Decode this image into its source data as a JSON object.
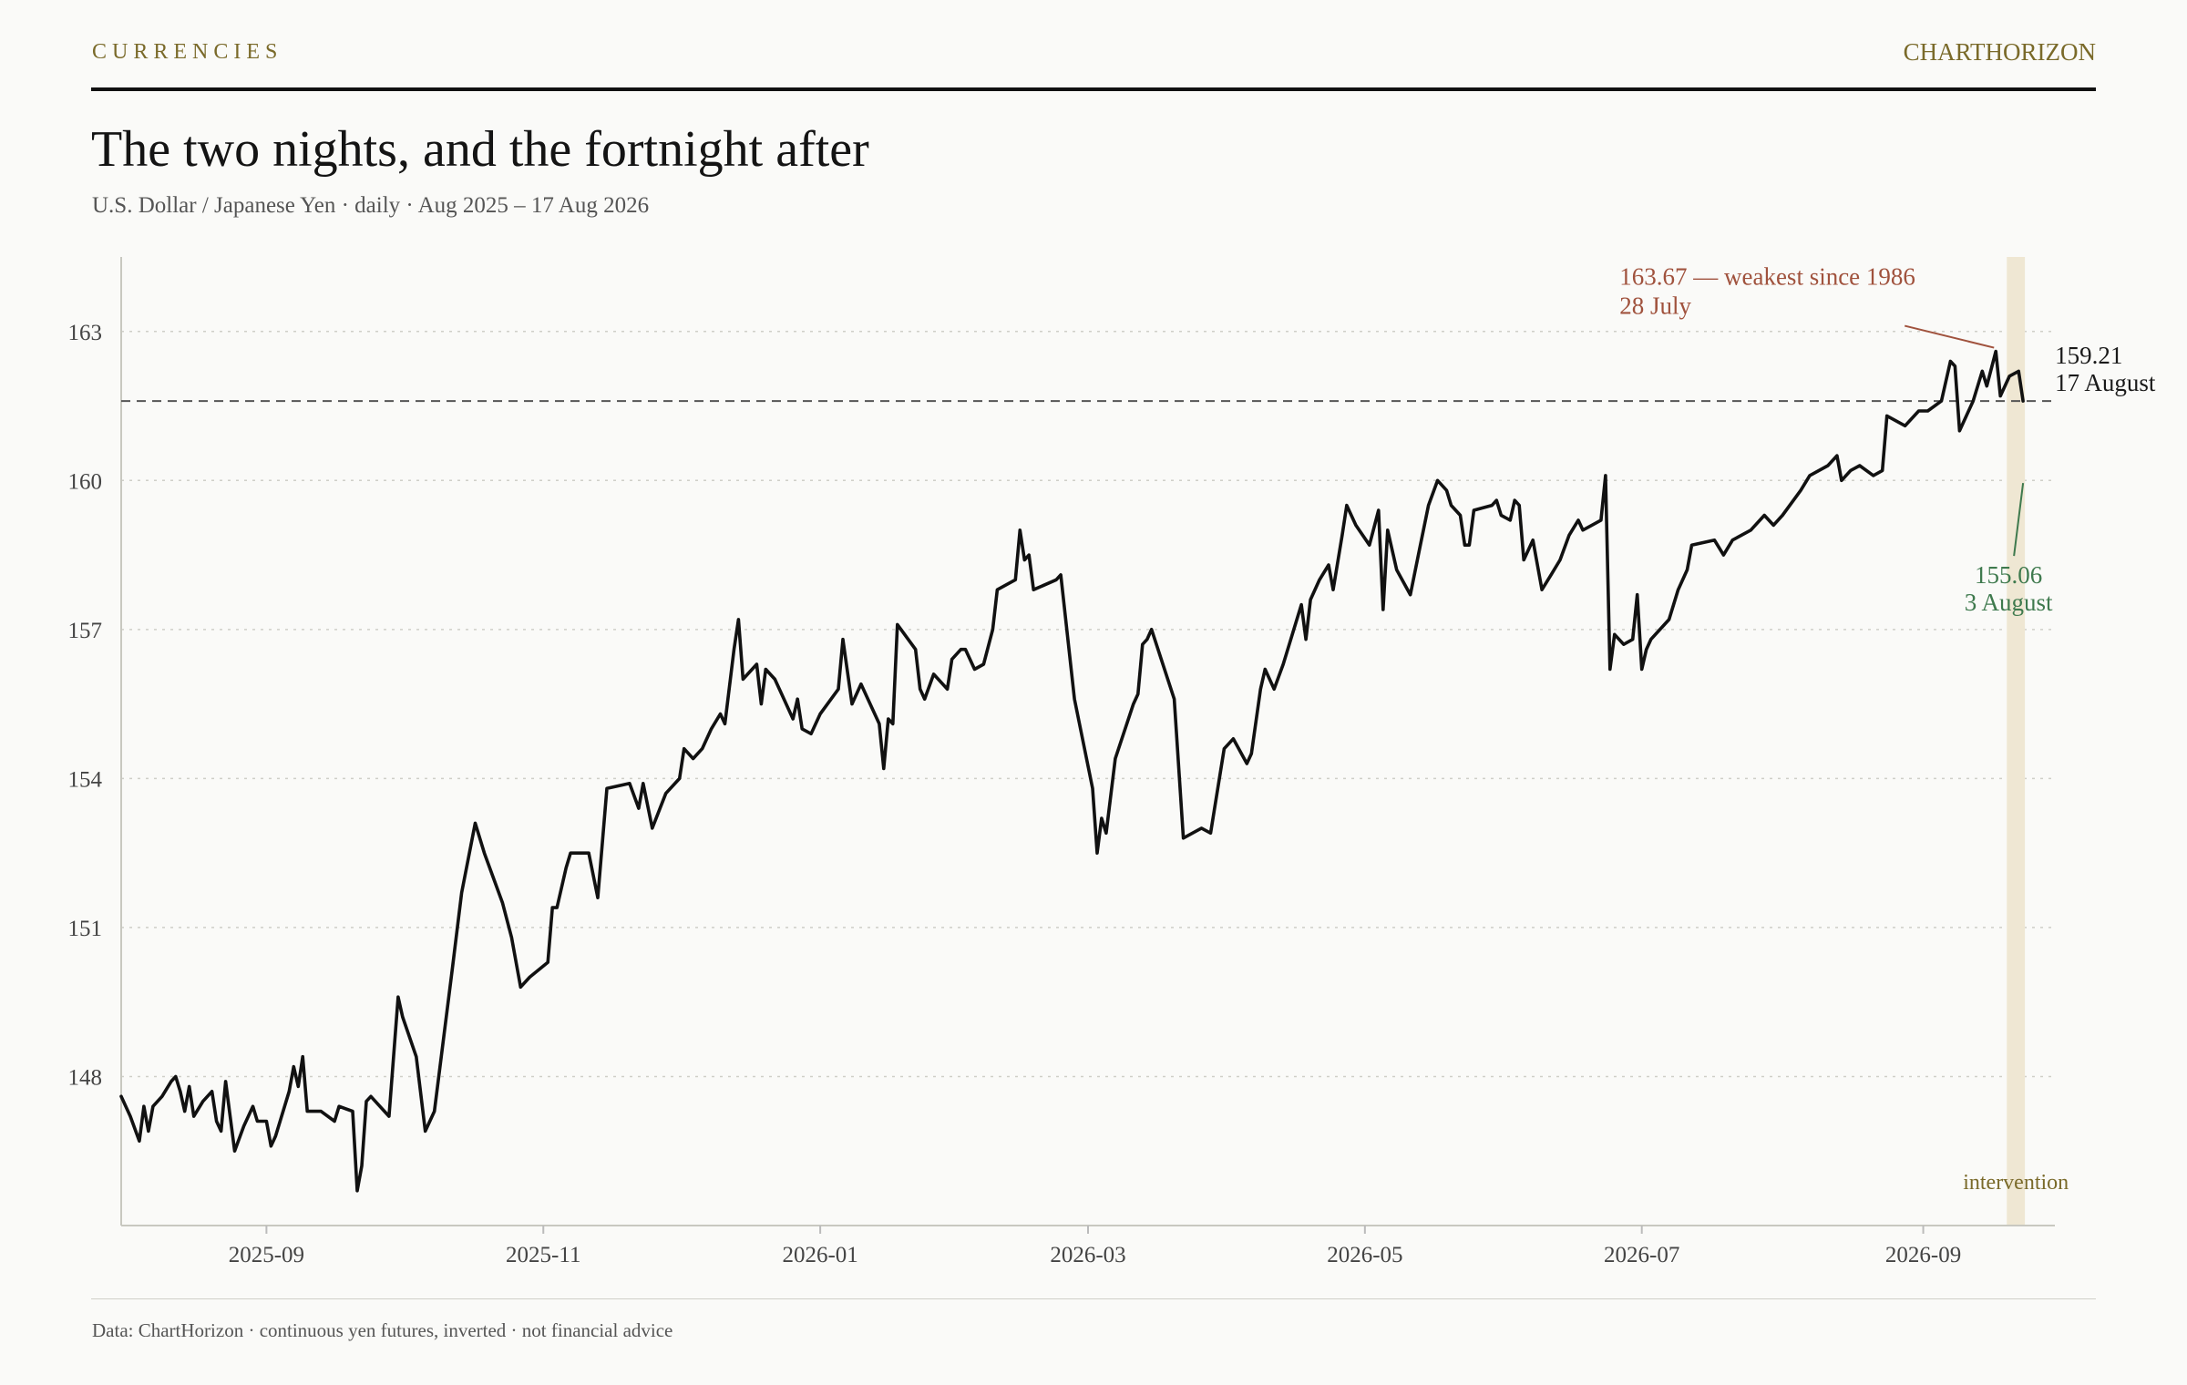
{
  "header": {
    "kicker": "CURRENCIES",
    "brand": "CHARTHORIZON",
    "title": "The two nights, and the fortnight after",
    "subtitle": "U.S. Dollar / Japanese Yen · daily · Aug 2025 – 17 Aug 2026"
  },
  "footer": {
    "note": "Data: ChartHorizon · continuous yen futures, inverted · not financial advice"
  },
  "colors": {
    "line": "#111111",
    "peak": "#a0523d",
    "trough": "#3f7a4e",
    "band": "#efe7d3",
    "accent": "#7a6a2a",
    "grid": "#cfcfc8"
  },
  "chart_data": {
    "type": "line",
    "title": "The two nights, and the fortnight after",
    "xlabel": "",
    "ylabel": "",
    "x_ticks": [
      "2025-09",
      "2025-11",
      "2026-01",
      "2026-03",
      "2026-05",
      "2026-07",
      "2026-09"
    ],
    "y_ticks": [
      148,
      151,
      154,
      157,
      160,
      163
    ],
    "xlim": [
      "2025-07-31",
      "2026-09-30"
    ],
    "ylim": [
      145.0,
      164.5
    ],
    "grid": "horizontal dotted",
    "series": [
      {
        "values": [
          [
            "2025-07-31",
            147.6
          ],
          [
            "2025-08-02",
            147.2
          ],
          [
            "2025-08-04",
            146.7
          ],
          [
            "2025-08-05",
            147.4
          ],
          [
            "2025-08-06",
            146.9
          ],
          [
            "2025-08-07",
            147.4
          ],
          [
            "2025-08-09",
            147.6
          ],
          [
            "2025-08-11",
            147.9
          ],
          [
            "2025-08-12",
            148.0
          ],
          [
            "2025-08-13",
            147.7
          ],
          [
            "2025-08-14",
            147.3
          ],
          [
            "2025-08-15",
            147.8
          ],
          [
            "2025-08-16",
            147.2
          ],
          [
            "2025-08-18",
            147.5
          ],
          [
            "2025-08-20",
            147.7
          ],
          [
            "2025-08-21",
            147.1
          ],
          [
            "2025-08-22",
            146.9
          ],
          [
            "2025-08-23",
            147.9
          ],
          [
            "2025-08-25",
            146.5
          ],
          [
            "2025-08-27",
            147.0
          ],
          [
            "2025-08-29",
            147.4
          ],
          [
            "2025-08-30",
            147.1
          ],
          [
            "2025-09-01",
            147.1
          ],
          [
            "2025-09-02",
            146.6
          ],
          [
            "2025-09-03",
            146.8
          ],
          [
            "2025-09-06",
            147.7
          ],
          [
            "2025-09-07",
            148.2
          ],
          [
            "2025-09-08",
            147.8
          ],
          [
            "2025-09-09",
            148.4
          ],
          [
            "2025-09-10",
            147.3
          ],
          [
            "2025-09-13",
            147.3
          ],
          [
            "2025-09-16",
            147.1
          ],
          [
            "2025-09-17",
            147.4
          ],
          [
            "2025-09-20",
            147.3
          ],
          [
            "2025-09-21",
            145.7
          ],
          [
            "2025-09-22",
            146.2
          ],
          [
            "2025-09-23",
            147.5
          ],
          [
            "2025-09-24",
            147.6
          ],
          [
            "2025-09-26",
            147.4
          ],
          [
            "2025-09-28",
            147.2
          ],
          [
            "2025-09-30",
            149.6
          ],
          [
            "2025-10-01",
            149.2
          ],
          [
            "2025-10-04",
            148.4
          ],
          [
            "2025-10-06",
            146.9
          ],
          [
            "2025-10-08",
            147.3
          ],
          [
            "2025-10-12",
            150.2
          ],
          [
            "2025-10-14",
            151.7
          ],
          [
            "2025-10-17",
            153.1
          ],
          [
            "2025-10-19",
            152.5
          ],
          [
            "2025-10-23",
            151.5
          ],
          [
            "2025-10-25",
            150.8
          ],
          [
            "2025-10-27",
            149.8
          ],
          [
            "2025-10-29",
            150.0
          ],
          [
            "2025-11-02",
            150.3
          ],
          [
            "2025-11-03",
            151.4
          ],
          [
            "2025-11-04",
            151.4
          ],
          [
            "2025-11-06",
            152.2
          ],
          [
            "2025-11-07",
            152.5
          ],
          [
            "2025-11-11",
            152.5
          ],
          [
            "2025-11-13",
            151.6
          ],
          [
            "2025-11-15",
            153.8
          ],
          [
            "2025-11-20",
            153.9
          ],
          [
            "2025-11-22",
            153.4
          ],
          [
            "2025-11-23",
            153.9
          ],
          [
            "2025-11-25",
            153.0
          ],
          [
            "2025-11-28",
            153.7
          ],
          [
            "2025-12-01",
            154.0
          ],
          [
            "2025-12-02",
            154.6
          ],
          [
            "2025-12-04",
            154.4
          ],
          [
            "2025-12-06",
            154.6
          ],
          [
            "2025-12-08",
            155.0
          ],
          [
            "2025-12-10",
            155.3
          ],
          [
            "2025-12-11",
            155.1
          ],
          [
            "2025-12-13",
            156.6
          ],
          [
            "2025-12-14",
            157.2
          ],
          [
            "2025-12-15",
            156.0
          ],
          [
            "2025-12-18",
            156.3
          ],
          [
            "2025-12-19",
            155.5
          ],
          [
            "2025-12-20",
            156.2
          ],
          [
            "2025-12-22",
            156.0
          ],
          [
            "2025-12-24",
            155.6
          ],
          [
            "2025-12-26",
            155.2
          ],
          [
            "2025-12-27",
            155.6
          ],
          [
            "2025-12-28",
            155.0
          ],
          [
            "2025-12-30",
            154.9
          ],
          [
            "2026-01-01",
            155.3
          ],
          [
            "2026-01-05",
            155.8
          ],
          [
            "2026-01-06",
            156.8
          ],
          [
            "2026-01-08",
            155.5
          ],
          [
            "2026-01-10",
            155.9
          ],
          [
            "2026-01-14",
            155.1
          ],
          [
            "2026-01-15",
            154.2
          ],
          [
            "2026-01-16",
            155.2
          ],
          [
            "2026-01-17",
            155.1
          ],
          [
            "2026-01-18",
            157.1
          ],
          [
            "2026-01-22",
            156.6
          ],
          [
            "2026-01-23",
            155.8
          ],
          [
            "2026-01-24",
            155.6
          ],
          [
            "2026-01-26",
            156.1
          ],
          [
            "2026-01-29",
            155.8
          ],
          [
            "2026-01-30",
            156.4
          ],
          [
            "2026-02-01",
            156.6
          ],
          [
            "2026-02-02",
            156.6
          ],
          [
            "2026-02-04",
            156.2
          ],
          [
            "2026-02-06",
            156.3
          ],
          [
            "2026-02-08",
            157.0
          ],
          [
            "2026-02-09",
            157.8
          ],
          [
            "2026-02-13",
            158.0
          ],
          [
            "2026-02-14",
            159.0
          ],
          [
            "2026-02-15",
            158.4
          ],
          [
            "2026-02-16",
            158.5
          ],
          [
            "2026-02-17",
            157.8
          ],
          [
            "2026-02-22",
            158.0
          ],
          [
            "2026-02-23",
            158.1
          ],
          [
            "2026-02-26",
            155.6
          ],
          [
            "2026-03-02",
            153.8
          ],
          [
            "2026-03-03",
            152.5
          ],
          [
            "2026-03-04",
            153.2
          ],
          [
            "2026-03-05",
            152.9
          ],
          [
            "2026-03-07",
            154.4
          ],
          [
            "2026-03-11",
            155.5
          ],
          [
            "2026-03-12",
            155.7
          ],
          [
            "2026-03-13",
            156.7
          ],
          [
            "2026-03-14",
            156.8
          ],
          [
            "2026-03-15",
            157.0
          ],
          [
            "2026-03-20",
            155.6
          ],
          [
            "2026-03-22",
            152.8
          ],
          [
            "2026-03-24",
            152.9
          ],
          [
            "2026-03-26",
            153.0
          ],
          [
            "2026-03-28",
            152.9
          ],
          [
            "2026-03-31",
            154.6
          ],
          [
            "2026-04-02",
            154.8
          ],
          [
            "2026-04-05",
            154.3
          ],
          [
            "2026-04-06",
            154.5
          ],
          [
            "2026-04-08",
            155.8
          ],
          [
            "2026-04-09",
            156.2
          ],
          [
            "2026-04-11",
            155.8
          ],
          [
            "2026-04-13",
            156.3
          ],
          [
            "2026-04-17",
            157.5
          ],
          [
            "2026-04-18",
            156.8
          ],
          [
            "2026-04-19",
            157.6
          ],
          [
            "2026-04-21",
            158.0
          ],
          [
            "2026-04-23",
            158.3
          ],
          [
            "2026-04-24",
            157.8
          ],
          [
            "2026-04-26",
            158.9
          ],
          [
            "2026-04-27",
            159.5
          ],
          [
            "2026-04-29",
            159.1
          ],
          [
            "2026-05-02",
            158.7
          ],
          [
            "2026-05-04",
            159.4
          ],
          [
            "2026-05-05",
            157.4
          ],
          [
            "2026-05-06",
            159.0
          ],
          [
            "2026-05-08",
            158.2
          ],
          [
            "2026-05-11",
            157.7
          ],
          [
            "2026-05-13",
            158.6
          ],
          [
            "2026-05-15",
            159.5
          ],
          [
            "2026-05-17",
            160.0
          ],
          [
            "2026-05-19",
            159.8
          ],
          [
            "2026-05-20",
            159.5
          ],
          [
            "2026-05-22",
            159.3
          ],
          [
            "2026-05-23",
            158.7
          ],
          [
            "2026-05-24",
            158.7
          ],
          [
            "2026-05-25",
            159.4
          ],
          [
            "2026-05-29",
            159.5
          ],
          [
            "2026-05-30",
            159.6
          ],
          [
            "2026-05-31",
            159.3
          ],
          [
            "2026-06-02",
            159.2
          ],
          [
            "2026-06-03",
            159.6
          ],
          [
            "2026-06-04",
            159.5
          ],
          [
            "2026-06-05",
            158.4
          ],
          [
            "2026-06-07",
            158.8
          ],
          [
            "2026-06-09",
            157.8
          ],
          [
            "2026-06-11",
            158.1
          ],
          [
            "2026-06-13",
            158.4
          ],
          [
            "2026-06-15",
            158.9
          ],
          [
            "2026-06-17",
            159.2
          ],
          [
            "2026-06-18",
            159.0
          ],
          [
            "2026-06-20",
            159.1
          ],
          [
            "2026-06-22",
            159.2
          ],
          [
            "2026-06-23",
            160.1
          ],
          [
            "2026-06-24",
            156.2
          ],
          [
            "2026-06-25",
            156.9
          ],
          [
            "2026-06-27",
            156.7
          ],
          [
            "2026-06-29",
            156.8
          ],
          [
            "2026-06-30",
            157.7
          ],
          [
            "2026-07-01",
            156.2
          ],
          [
            "2026-07-02",
            156.6
          ],
          [
            "2026-07-03",
            156.8
          ],
          [
            "2026-07-07",
            157.2
          ],
          [
            "2026-07-09",
            157.8
          ],
          [
            "2026-07-11",
            158.2
          ],
          [
            "2026-07-12",
            158.7
          ],
          [
            "2026-07-17",
            158.8
          ],
          [
            "2026-07-19",
            158.5
          ],
          [
            "2026-07-21",
            158.8
          ],
          [
            "2026-07-25",
            159.0
          ],
          [
            "2026-07-28",
            159.3
          ],
          [
            "2026-07-30",
            159.1
          ],
          [
            "2026-08-01",
            159.3
          ],
          [
            "2026-08-05",
            159.8
          ],
          [
            "2026-08-07",
            160.1
          ],
          [
            "2026-08-11",
            160.3
          ],
          [
            "2026-08-13",
            160.5
          ],
          [
            "2026-08-14",
            160.0
          ],
          [
            "2026-08-16",
            160.2
          ],
          [
            "2026-08-18",
            160.3
          ],
          [
            "2026-08-21",
            160.1
          ],
          [
            "2026-08-23",
            160.2
          ],
          [
            "2026-08-24",
            161.3
          ],
          [
            "2026-08-28",
            161.1
          ],
          [
            "2026-08-31",
            161.4
          ],
          [
            "2026-09-02",
            161.4
          ],
          [
            "2026-09-05",
            161.6
          ],
          [
            "2026-09-07",
            162.4
          ],
          [
            "2026-09-08",
            162.3
          ],
          [
            "2026-09-09",
            161.0
          ],
          [
            "2026-09-12",
            161.6
          ],
          [
            "2026-09-14",
            162.2
          ],
          [
            "2026-09-15",
            161.9
          ],
          [
            "2026-09-17",
            162.6
          ],
          [
            "2026-09-18",
            161.7
          ],
          [
            "2026-09-20",
            162.1
          ],
          [
            "2026-09-22",
            162.2
          ],
          [
            "2026-09-23",
            161.6
          ]
        ]
      }
    ],
    "annotations": [
      {
        "label": "163.67 — weakest since 1986",
        "sublabel": "28 July",
        "value": 163.67,
        "kind": "peak"
      },
      {
        "label": "155.06",
        "sublabel": "3 August",
        "value": 155.06,
        "kind": "trough"
      },
      {
        "label": "159.21",
        "sublabel": "17 August",
        "value": 159.21,
        "kind": "last"
      },
      {
        "label": "intervention",
        "kind": "band"
      }
    ]
  }
}
